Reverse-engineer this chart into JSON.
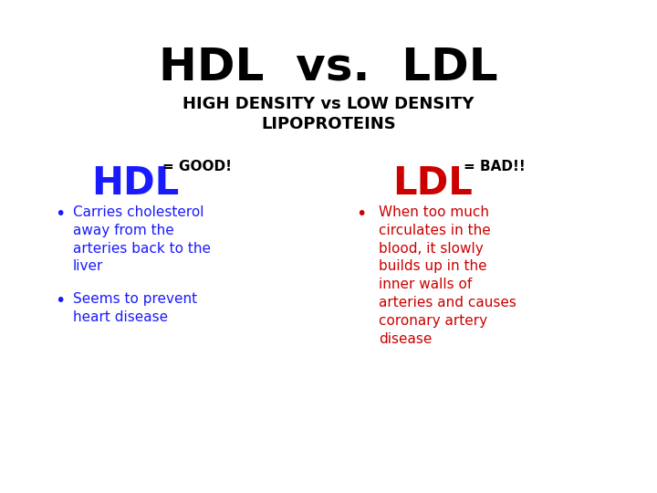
{
  "background_color": "#ffffff",
  "title": "HDL  vs.  LDL",
  "title_color": "#000000",
  "title_fontsize": 36,
  "subtitle": "HIGH DENSITY vs LOW DENSITY\nLIPOPROTEINS",
  "subtitle_color": "#000000",
  "subtitle_fontsize": 13,
  "hdl_label": "HDL",
  "hdl_label_color": "#1a1aff",
  "hdl_label_fontsize": 30,
  "hdl_good_text": "= GOOD!",
  "hdl_good_color": "#000000",
  "hdl_good_fontsize": 11,
  "ldl_label": "LDL",
  "ldl_label_color": "#cc0000",
  "ldl_label_fontsize": 30,
  "ldl_bad_text": "= BAD!!",
  "ldl_bad_color": "#000000",
  "ldl_bad_fontsize": 11,
  "hdl_bullets": [
    "Carries cholesterol\naway from the\narteries back to the\nliver",
    "Seems to prevent\nheart disease"
  ],
  "hdl_bullet_color": "#1a1aff",
  "hdl_bullet_fontsize": 11,
  "ldl_bullets": [
    "When too much\ncirculates in the\nblood, it slowly\nbuilds up in the\ninner walls of\narteries and causes\ncoronary artery\ndisease"
  ],
  "ldl_bullet_color": "#cc0000",
  "ldl_bullet_fontsize": 11,
  "bullet_dot_color_hdl": "#1a1aff",
  "bullet_dot_color_ldl": "#cc0000"
}
